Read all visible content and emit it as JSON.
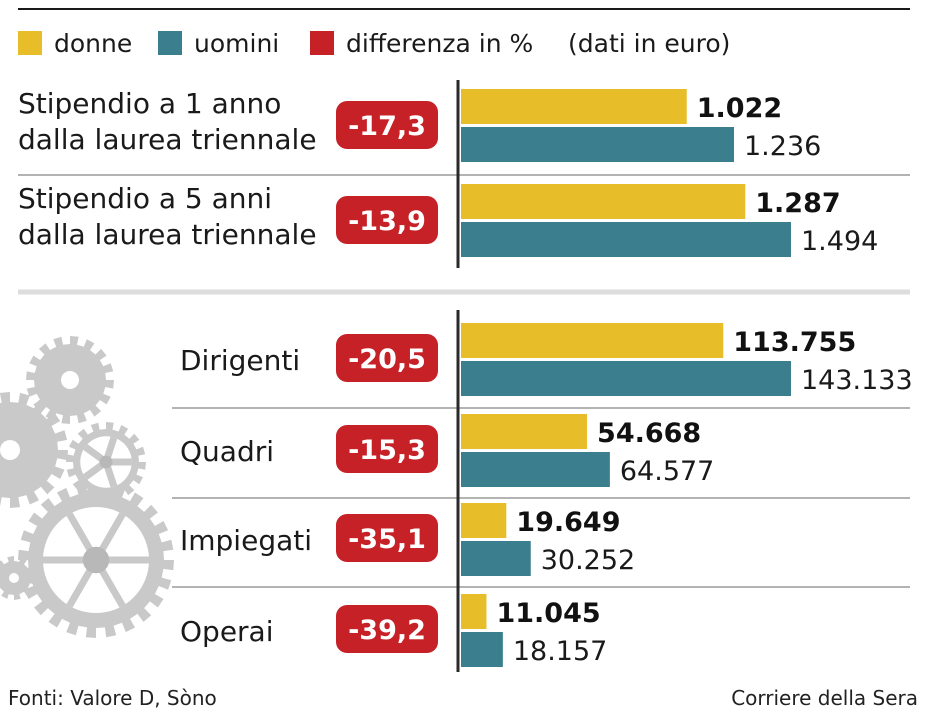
{
  "legend": {
    "women": "donne",
    "men": "uomini",
    "diff": "differenza in %",
    "unit": "(dati in euro)"
  },
  "colors": {
    "women": "#e8bd2a",
    "men": "#3b7f8e",
    "diff": "#c62127"
  },
  "chart_data": [
    {
      "type": "bar",
      "orientation": "horizontal",
      "categories": [
        "Stipendio a 1 anno dalla laurea triennale",
        "Stipendio a 5 anni dalla laurea triennale"
      ],
      "label_lines": [
        [
          "Stipendio a 1 anno",
          "dalla laurea triennale"
        ],
        [
          "Stipendio a 5 anni",
          "dalla laurea triennale"
        ]
      ],
      "series": [
        {
          "name": "donne",
          "values": [
            1022,
            1287
          ],
          "labels": [
            "1.022",
            "1.287"
          ]
        },
        {
          "name": "uomini",
          "values": [
            1236,
            1494
          ],
          "labels": [
            "1.236",
            "1.494"
          ]
        }
      ],
      "diff_labels": [
        "-17,3",
        "-13,9"
      ]
    },
    {
      "type": "bar",
      "orientation": "horizontal",
      "categories": [
        "Dirigenti",
        "Quadri",
        "Impiegati",
        "Operai"
      ],
      "label_lines": [
        [
          "Dirigenti"
        ],
        [
          "Quadri"
        ],
        [
          "Impiegati"
        ],
        [
          "Operai"
        ]
      ],
      "series": [
        {
          "name": "donne",
          "values": [
            113755,
            54668,
            19649,
            11045
          ],
          "labels": [
            "113.755",
            "54.668",
            "19.649",
            "11.045"
          ]
        },
        {
          "name": "uomini",
          "values": [
            143133,
            64577,
            30252,
            18157
          ],
          "labels": [
            "143.133",
            "64.577",
            "30.252",
            "18.157"
          ]
        }
      ],
      "diff_labels": [
        "-20,5",
        "-15,3",
        "-35,1",
        "-39,2"
      ]
    }
  ],
  "footer": {
    "source": "Fonti: Valore D, Sòno",
    "credit": "Corriere della Sera"
  }
}
